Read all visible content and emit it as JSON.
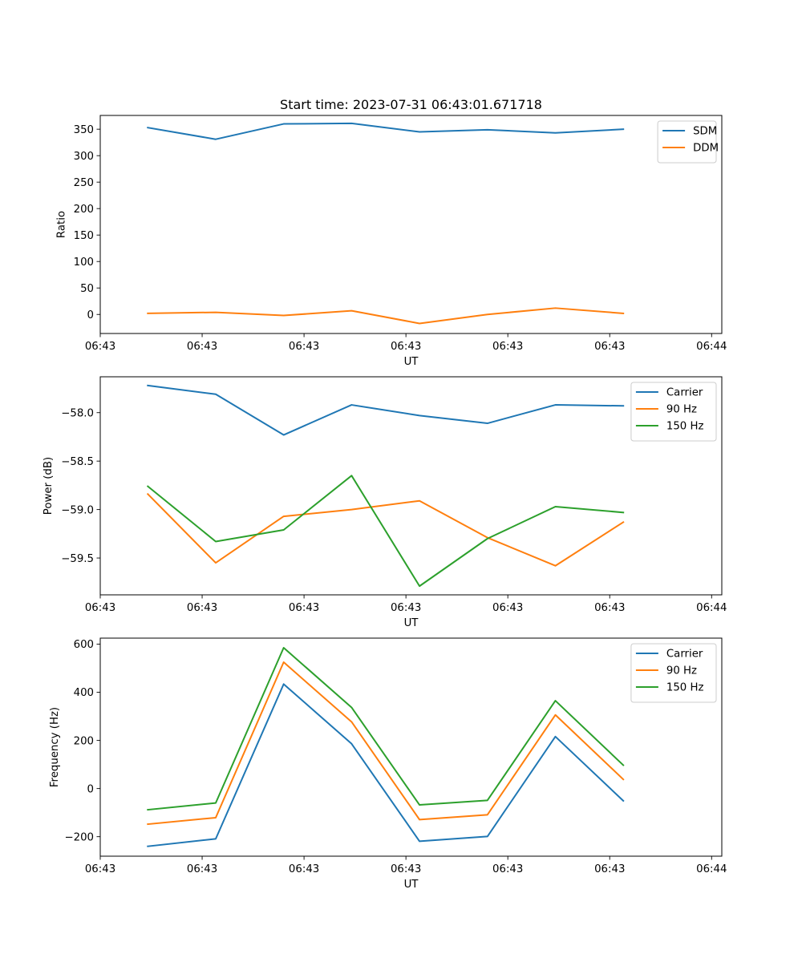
{
  "chart_data": [
    {
      "id": "ratio",
      "type": "line",
      "title": "Start time: 2023-07-31 06:43:01.671718",
      "xlabel": "UT",
      "ylabel": "Ratio",
      "x": [
        0,
        1,
        2,
        3,
        4,
        5,
        6,
        7
      ],
      "xlim": [
        -0.7,
        8.45
      ],
      "x_ticks": [
        -0.7,
        0.8,
        2.3,
        3.8,
        5.3,
        6.8,
        8.3
      ],
      "x_tick_labels": [
        "06:43",
        "06:43",
        "06:43",
        "06:43",
        "06:43",
        "06:43",
        "06:44"
      ],
      "ylim": [
        -36,
        376
      ],
      "y_ticks": [
        0,
        50,
        100,
        150,
        200,
        250,
        300,
        350
      ],
      "y_tick_labels": [
        "0",
        "50",
        "100",
        "150",
        "200",
        "250",
        "300",
        "350"
      ],
      "legend_position": "top-right",
      "series": [
        {
          "name": "SDM",
          "color": "#1f77b4",
          "values": [
            353,
            331,
            360,
            361,
            345,
            349,
            343,
            350
          ]
        },
        {
          "name": "DDM",
          "color": "#ff7f0e",
          "values": [
            2,
            4,
            -2,
            7,
            -17,
            0,
            12,
            2
          ]
        }
      ]
    },
    {
      "id": "power",
      "type": "line",
      "title": "",
      "xlabel": "UT",
      "ylabel": "Power (dB)",
      "x": [
        0,
        1,
        2,
        3,
        4,
        5,
        6,
        7
      ],
      "xlim": [
        -0.7,
        8.45
      ],
      "x_ticks": [
        -0.7,
        0.8,
        2.3,
        3.8,
        5.3,
        6.8,
        8.3
      ],
      "x_tick_labels": [
        "06:43",
        "06:43",
        "06:43",
        "06:43",
        "06:43",
        "06:43",
        "06:44"
      ],
      "ylim": [
        -59.88,
        -57.63
      ],
      "y_ticks": [
        -58.0,
        -58.5,
        -59.0,
        -59.5
      ],
      "y_tick_labels": [
        "−58.0",
        "−58.5",
        "−59.0",
        "−59.5"
      ],
      "legend_position": "top-right",
      "series": [
        {
          "name": "Carrier",
          "color": "#1f77b4",
          "values": [
            -57.72,
            -57.81,
            -58.23,
            -57.92,
            -58.03,
            -58.11,
            -57.92,
            -57.93
          ]
        },
        {
          "name": "90 Hz",
          "color": "#ff7f0e",
          "values": [
            -58.84,
            -59.55,
            -59.07,
            -59.0,
            -58.91,
            -59.29,
            -59.58,
            -59.13
          ]
        },
        {
          "name": "150 Hz",
          "color": "#2ca02c",
          "values": [
            -58.76,
            -59.33,
            -59.21,
            -58.65,
            -59.79,
            -59.3,
            -58.97,
            -59.03
          ]
        }
      ]
    },
    {
      "id": "frequency",
      "type": "line",
      "title": "",
      "xlabel": "UT",
      "ylabel": "Frequency (Hz)",
      "x": [
        0,
        1,
        2,
        3,
        4,
        5,
        6,
        7
      ],
      "xlim": [
        -0.7,
        8.45
      ],
      "x_ticks": [
        -0.7,
        0.8,
        2.3,
        3.8,
        5.3,
        6.8,
        8.3
      ],
      "x_tick_labels": [
        "06:43",
        "06:43",
        "06:43",
        "06:43",
        "06:43",
        "06:43",
        "06:44"
      ],
      "ylim": [
        -281,
        625
      ],
      "y_ticks": [
        -200,
        0,
        200,
        400,
        600
      ],
      "y_tick_labels": [
        "−200",
        "0",
        "200",
        "400",
        "600"
      ],
      "legend_position": "top-right",
      "series": [
        {
          "name": "Carrier",
          "color": "#1f77b4",
          "values": [
            -240,
            -209,
            434,
            186,
            -219,
            -199,
            216,
            -51
          ]
        },
        {
          "name": "90 Hz",
          "color": "#ff7f0e",
          "values": [
            -148,
            -121,
            525,
            277,
            -129,
            -109,
            306,
            38
          ]
        },
        {
          "name": "150 Hz",
          "color": "#2ca02c",
          "values": [
            -88,
            -60,
            585,
            337,
            -68,
            -49,
            365,
            97
          ]
        }
      ]
    }
  ]
}
